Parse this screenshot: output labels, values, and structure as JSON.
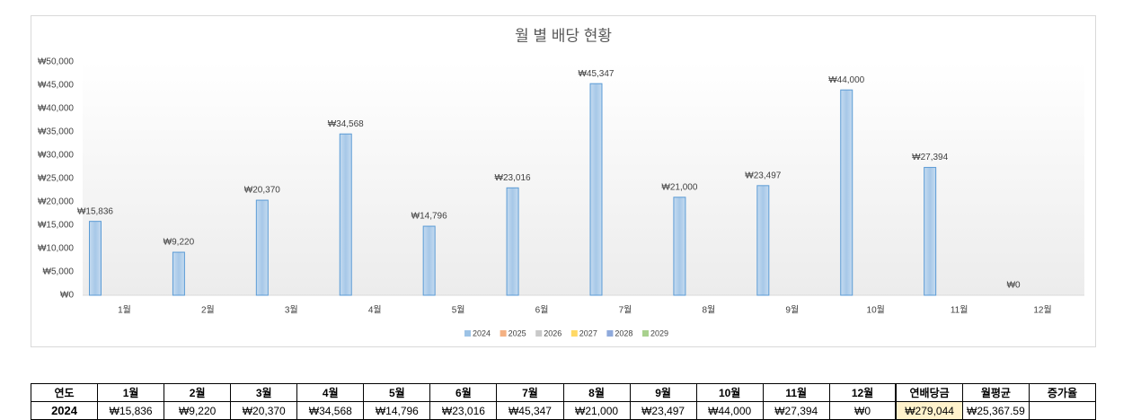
{
  "chart_data": {
    "type": "bar",
    "title": "월 별 배당 현황",
    "categories": [
      "1월",
      "2월",
      "3월",
      "4월",
      "5월",
      "6월",
      "7월",
      "8월",
      "9월",
      "10월",
      "11월",
      "12월"
    ],
    "series": [
      {
        "name": "2024",
        "color": "#9dc3e6",
        "values": [
          15836,
          9220,
          20370,
          34568,
          14796,
          23016,
          45347,
          21000,
          23497,
          44000,
          27394,
          0
        ],
        "value_labels": [
          "₩15,836",
          "₩9,220",
          "₩20,370",
          "₩34,568",
          "₩14,796",
          "₩23,016",
          "₩45,347",
          "₩21,000",
          "₩23,497",
          "₩44,000",
          "₩27,394",
          "₩0"
        ]
      },
      {
        "name": "2025",
        "color": "#f4b183",
        "values": [
          null,
          null,
          null,
          null,
          null,
          null,
          null,
          null,
          null,
          null,
          null,
          null
        ]
      },
      {
        "name": "2026",
        "color": "#c9c9c9",
        "values": [
          null,
          null,
          null,
          null,
          null,
          null,
          null,
          null,
          null,
          null,
          null,
          null
        ]
      },
      {
        "name": "2027",
        "color": "#ffd966",
        "values": [
          null,
          null,
          null,
          null,
          null,
          null,
          null,
          null,
          null,
          null,
          null,
          null
        ]
      },
      {
        "name": "2028",
        "color": "#8faadc",
        "values": [
          null,
          null,
          null,
          null,
          null,
          null,
          null,
          null,
          null,
          null,
          null,
          null
        ]
      },
      {
        "name": "2029",
        "color": "#a9d18e",
        "values": [
          null,
          null,
          null,
          null,
          null,
          null,
          null,
          null,
          null,
          null,
          null,
          null
        ]
      }
    ],
    "ylim": [
      0,
      50000
    ],
    "yticks": [
      {
        "value": 0,
        "label": "₩0"
      },
      {
        "value": 5000,
        "label": "₩5,000"
      },
      {
        "value": 10000,
        "label": "₩10,000"
      },
      {
        "value": 15000,
        "label": "₩15,000"
      },
      {
        "value": 20000,
        "label": "₩20,000"
      },
      {
        "value": 25000,
        "label": "₩25,000"
      },
      {
        "value": 30000,
        "label": "₩30,000"
      },
      {
        "value": 35000,
        "label": "₩35,000"
      },
      {
        "value": 40000,
        "label": "₩40,000"
      },
      {
        "value": 45000,
        "label": "₩45,000"
      },
      {
        "value": 50000,
        "label": "₩50,000"
      }
    ],
    "legend": "bottom"
  },
  "table": {
    "header": [
      "연도",
      "1월",
      "2월",
      "3월",
      "4월",
      "5월",
      "6월",
      "7월",
      "8월",
      "9월",
      "10월",
      "11월",
      "12월",
      "연배당금",
      "월평균",
      "증가율"
    ],
    "rows": [
      [
        "2024",
        "₩15,836",
        "₩9,220",
        "₩20,370",
        "₩34,568",
        "₩14,796",
        "₩23,016",
        "₩45,347",
        "₩21,000",
        "₩23,497",
        "₩44,000",
        "₩27,394",
        "₩0",
        "₩279,044",
        "₩25,367.59"
      ]
    ]
  }
}
